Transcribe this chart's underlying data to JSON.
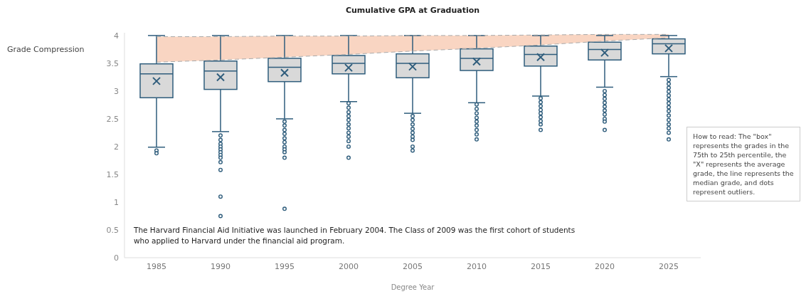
{
  "chart_data": {
    "type": "box",
    "title": "Cumulative GPA at Graduation",
    "xlabel": "Degree Year",
    "categories": [
      "1985",
      "1990",
      "1995",
      "2000",
      "2005",
      "2010",
      "2015",
      "2020",
      "2025"
    ],
    "ylim": [
      0,
      4.05
    ],
    "yticks": [
      0,
      0.5,
      1,
      1.5,
      2,
      2.5,
      3,
      3.5,
      4
    ],
    "grid": false,
    "series": [
      {
        "color": "#2f5d7c",
        "marker": "cross",
        "boxes": [
          {
            "low": 1.99,
            "q1": 2.88,
            "median": 3.31,
            "q3": 3.49,
            "high": 4.0,
            "mean": 3.18,
            "outliers": [
              1.93,
              1.88
            ]
          },
          {
            "low": 2.27,
            "q1": 3.03,
            "median": 3.36,
            "q3": 3.54,
            "high": 4.0,
            "mean": 3.25,
            "outliers": [
              2.2,
              2.12,
              2.05,
              2.0,
              1.95,
              1.9,
              1.85,
              1.8,
              1.72,
              1.58,
              1.1,
              0.75
            ]
          },
          {
            "low": 2.5,
            "q1": 3.17,
            "median": 3.43,
            "q3": 3.59,
            "high": 4.0,
            "mean": 3.33,
            "outliers": [
              2.45,
              2.38,
              2.3,
              2.23,
              2.15,
              2.08,
              2.0,
              1.95,
              1.9,
              1.8,
              0.88
            ]
          },
          {
            "low": 2.81,
            "q1": 3.31,
            "median": 3.5,
            "q3": 3.64,
            "high": 4.0,
            "mean": 3.42,
            "outliers": [
              2.78,
              2.7,
              2.62,
              2.55,
              2.48,
              2.4,
              2.33,
              2.25,
              2.18,
              2.1,
              2.0,
              1.8
            ]
          },
          {
            "low": 2.6,
            "q1": 3.24,
            "median": 3.5,
            "q3": 3.67,
            "high": 4.0,
            "mean": 3.44,
            "outliers": [
              2.55,
              2.48,
              2.4,
              2.32,
              2.25,
              2.18,
              2.12,
              2.0,
              1.93
            ]
          },
          {
            "low": 2.79,
            "q1": 3.37,
            "median": 3.59,
            "q3": 3.76,
            "high": 4.0,
            "mean": 3.53,
            "outliers": [
              2.76,
              2.68,
              2.6,
              2.52,
              2.45,
              2.38,
              2.3,
              2.22,
              2.13
            ]
          },
          {
            "low": 2.91,
            "q1": 3.45,
            "median": 3.66,
            "q3": 3.81,
            "high": 4.0,
            "mean": 3.61,
            "outliers": [
              2.87,
              2.8,
              2.73,
              2.66,
              2.6,
              2.53,
              2.46,
              2.4,
              2.3
            ]
          },
          {
            "low": 3.07,
            "q1": 3.56,
            "median": 3.75,
            "q3": 3.88,
            "high": 4.0,
            "mean": 3.69,
            "outliers": [
              3.0,
              2.93,
              2.86,
              2.79,
              2.72,
              2.65,
              2.58,
              2.5,
              2.45,
              2.3
            ]
          },
          {
            "low": 3.26,
            "q1": 3.67,
            "median": 3.85,
            "q3": 3.94,
            "high": 4.0,
            "mean": 3.77,
            "outliers": [
              3.2,
              3.13,
              3.06,
              2.99,
              2.92,
              2.85,
              2.78,
              2.71,
              2.64,
              2.56,
              2.48,
              2.4,
              2.33,
              2.25,
              2.13
            ]
          }
        ]
      },
      {
        "type": "line",
        "color": "#aaaaaa",
        "line_style": "dashed",
        "values": [
          3.98,
          3.98,
          3.99,
          3.99,
          4.0,
          4.0,
          4.01,
          4.02,
          4.02
        ]
      },
      {
        "type": "line",
        "color": "#aaaaaa",
        "line_style": "dashed",
        "values": [
          3.52,
          3.56,
          3.61,
          3.66,
          3.72,
          3.77,
          3.83,
          3.9,
          3.96
        ]
      }
    ],
    "annotations": [
      "Grade Compression",
      "The Harvard Financial Aid Initiative was launched in February 2004. The Class of 2009 was the first cohort of students who applied to Harvard under the financial aid program.",
      "How to read: The \"box\" represents the grades in the 75th to 25th percentile, the \"X\" represents the average grade, the line represents the median grade, and dots represent outliers."
    ]
  }
}
